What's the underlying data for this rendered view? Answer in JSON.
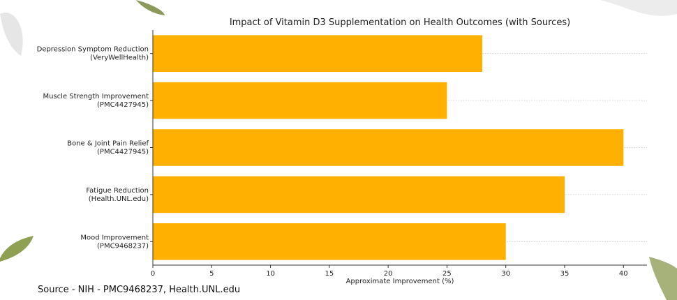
{
  "chart_data": {
    "type": "bar",
    "orientation": "horizontal",
    "title": "Impact of Vitamin D3 Supplementation on Health Outcomes (with Sources)",
    "xlabel": "Approximate Improvement (%)",
    "ylabel": "",
    "xlim": [
      0,
      42
    ],
    "xticks": [
      0,
      5,
      10,
      15,
      20,
      25,
      30,
      35,
      40
    ],
    "grid": "dotted horizontal",
    "bar_color": "#FFB000",
    "categories": [
      [
        "Depression Symptom Reduction",
        "(VeryWellHealth)"
      ],
      [
        "Muscle Strength Improvement",
        "(PMC4427945)"
      ],
      [
        "Bone & Joint Pain Relief",
        "(PMC4427945)"
      ],
      [
        "Fatigue Reduction",
        "(Health.UNL.edu)"
      ],
      [
        "Mood Improvement",
        "(PMC9468237)"
      ]
    ],
    "values": [
      28,
      25,
      40,
      35,
      30
    ]
  },
  "footer": {
    "source": "Source - NIH - PMC9468237, Health.UNL.edu"
  },
  "decoration": {
    "leaf_color": "#9aa86b",
    "faded_leaf_color": "#d9d9d9"
  }
}
